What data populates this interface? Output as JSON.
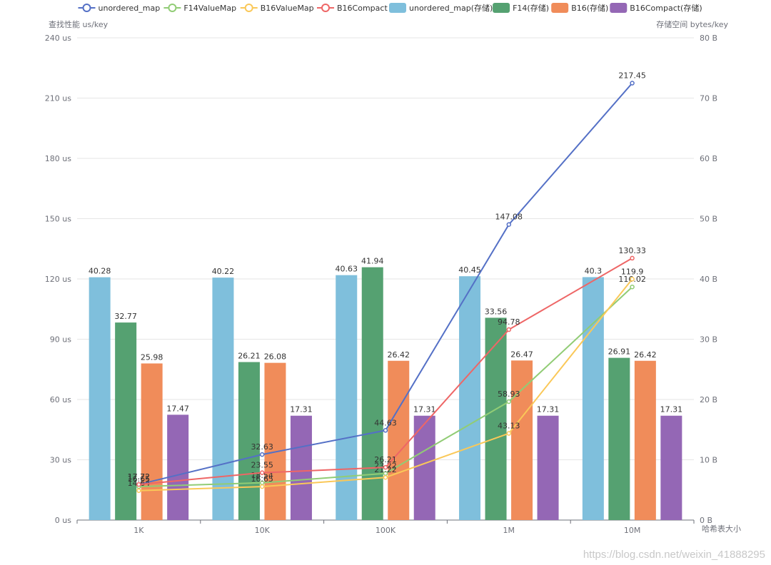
{
  "legend": [
    {
      "name": "unordered_map",
      "kind": "line",
      "color": "#5470c6"
    },
    {
      "name": "F14ValueMap",
      "kind": "line",
      "color": "#91cc75"
    },
    {
      "name": "B16ValueMap",
      "kind": "line",
      "color": "#fac858"
    },
    {
      "name": "B16Compact",
      "kind": "line",
      "color": "#ee6666"
    },
    {
      "name": "unordered_map(存储)",
      "kind": "bar",
      "color": "#7fbfdc"
    },
    {
      "name": "F14(存储)",
      "kind": "bar",
      "color": "#55a171"
    },
    {
      "name": "B16(存储)",
      "kind": "bar",
      "color": "#f08c5a"
    },
    {
      "name": "B16Compact(存储)",
      "kind": "bar",
      "color": "#9467b5"
    }
  ],
  "watermark": "https://blog.csdn.net/weixin_41888295",
  "chart_data": {
    "type": "bar",
    "categories": [
      "1K",
      "10K",
      "100K",
      "1M",
      "10M"
    ],
    "xlabel": "哈希表大小",
    "ylabel_left": "查找性能 us/key",
    "ylabel_right": "存储空间 bytes/key",
    "ylim_left": [
      0,
      240
    ],
    "ylim_right": [
      0,
      80
    ],
    "yticks_left": [
      "0 us",
      "30 us",
      "60 us",
      "90 us",
      "120 us",
      "150 us",
      "180 us",
      "210 us",
      "240 us"
    ],
    "yticks_right": [
      "0 B",
      "10 B",
      "20 B",
      "30 B",
      "40 B",
      "50 B",
      "60 B",
      "70 B",
      "80 B"
    ],
    "grid": true,
    "legend_position": "top",
    "bar_series": [
      {
        "name": "unordered_map(存储)",
        "values": [
          40.28,
          40.22,
          40.63,
          40.45,
          40.3
        ],
        "color": "#7fbfdc",
        "axis": "right"
      },
      {
        "name": "F14(存储)",
        "values": [
          32.77,
          26.21,
          41.94,
          33.56,
          26.91
        ],
        "color": "#55a171",
        "axis": "right"
      },
      {
        "name": "B16(存储)",
        "values": [
          25.98,
          26.08,
          26.42,
          26.47,
          26.42
        ],
        "color": "#f08c5a",
        "axis": "right"
      },
      {
        "name": "B16Compact(存储)",
        "values": [
          17.47,
          17.31,
          17.31,
          17.31,
          17.31
        ],
        "color": "#9467b5",
        "axis": "right"
      }
    ],
    "line_series": [
      {
        "name": "unordered_map",
        "values": [
          17.72,
          32.63,
          44.63,
          147.08,
          217.45
        ],
        "color": "#5470c6",
        "axis": "left"
      },
      {
        "name": "F14ValueMap",
        "values": [
          16.65,
          18.54,
          23.22,
          58.93,
          116.02
        ],
        "color": "#91cc75",
        "axis": "left"
      },
      {
        "name": "B16ValueMap",
        "values": [
          14.64,
          16.65,
          21.22,
          43.13,
          119.9
        ],
        "color": "#fac858",
        "axis": "left"
      },
      {
        "name": "B16Compact",
        "values": [
          17.72,
          23.55,
          26.21,
          94.78,
          130.33
        ],
        "color": "#ee6666",
        "axis": "left"
      }
    ]
  }
}
